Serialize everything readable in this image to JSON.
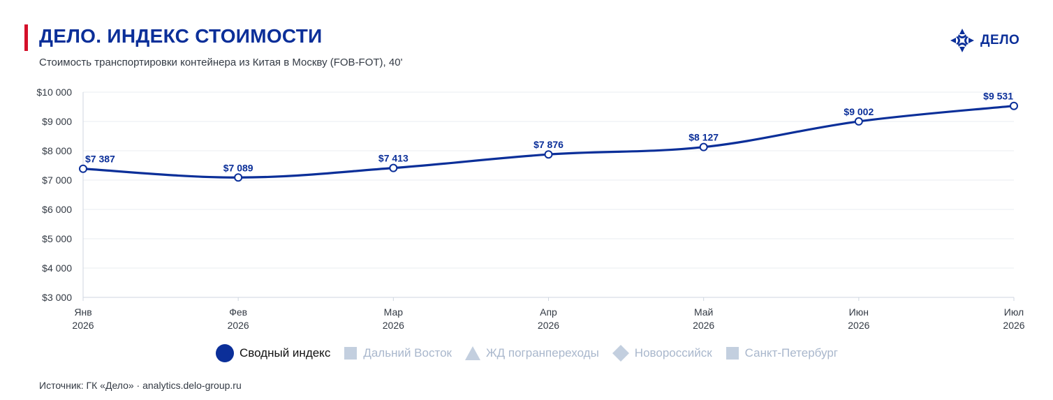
{
  "header": {
    "title": "ДЕЛО. ИНДЕКС СТОИМОСТИ",
    "subtitle": "Стоимость транспортировки контейнера из Китая в Москву (FOB-FOT), 40'",
    "logo_text": "ДЕЛО",
    "logo_icon": "delo-compass-icon"
  },
  "colors": {
    "accent": "#d4102a",
    "brand": "#0b2f99",
    "inactive": "#c3cfdf"
  },
  "chart_data": {
    "type": "line",
    "categories": [
      [
        "Янв",
        "2026"
      ],
      [
        "Фев",
        "2026"
      ],
      [
        "Мар",
        "2026"
      ],
      [
        "Апр",
        "2026"
      ],
      [
        "Май",
        "2026"
      ],
      [
        "Июн",
        "2026"
      ],
      [
        "Июл",
        "2026"
      ]
    ],
    "series": [
      {
        "name": "Сводный индекс",
        "values": [
          7387,
          7089,
          7413,
          7876,
          8127,
          9002,
          9531
        ],
        "labels": [
          "$7 387",
          "$7 089",
          "$7 413",
          "$7 876",
          "$8 127",
          "$9 002",
          "$9 531"
        ],
        "color": "#0b2f99"
      }
    ],
    "ylim": [
      3000,
      10000
    ],
    "yticks": [
      {
        "value": 10000,
        "label": "$10 000"
      },
      {
        "value": 9000,
        "label": "$9 000"
      },
      {
        "value": 8000,
        "label": "$8 000"
      },
      {
        "value": 7000,
        "label": "$7 000"
      },
      {
        "value": 6000,
        "label": "$6 000"
      },
      {
        "value": 5000,
        "label": "$5 000"
      },
      {
        "value": 4000,
        "label": "$4 000"
      },
      {
        "value": 3000,
        "label": "$3 000"
      }
    ],
    "grid": true,
    "legend_position": "bottom-center"
  },
  "legend": [
    {
      "label": "Сводный индекс",
      "shape": "circle",
      "active": true
    },
    {
      "label": "Дальний Восток",
      "shape": "square",
      "active": false
    },
    {
      "label": "ЖД погранпереходы",
      "shape": "triangle",
      "active": false
    },
    {
      "label": "Новороссийск",
      "shape": "diamond",
      "active": false
    },
    {
      "label": "Санкт-Петербург",
      "shape": "square",
      "active": false
    }
  ],
  "footer": {
    "source": "Источник: ГК «Дело» · analytics.delo-group.ru"
  }
}
